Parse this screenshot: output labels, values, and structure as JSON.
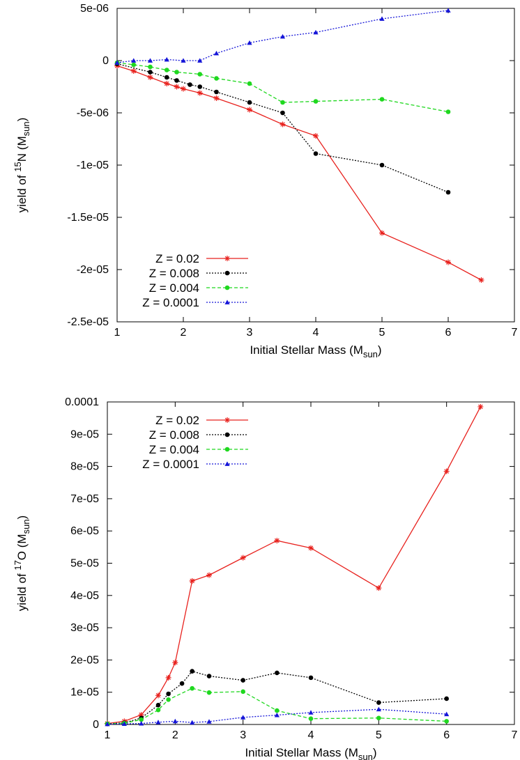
{
  "chart_data": [
    {
      "type": "line",
      "xlabel": "Initial Stellar Mass (M",
      "xlabel_sub": "sun",
      "xlabel_end": ")",
      "ylabel_pre": "yield of ",
      "ylabel_sup": "15",
      "ylabel_mid": "N (M",
      "ylabel_sub": "sun",
      "ylabel_end": ")",
      "xlim": [
        1,
        7
      ],
      "ylim": [
        -2.5e-05,
        5e-06
      ],
      "xticks": [
        "1",
        "2",
        "3",
        "4",
        "5",
        "6",
        "7"
      ],
      "yticks": [
        "5e-06",
        "0",
        "-5e-06",
        "-1e-05",
        "-1.5e-05",
        "-2e-05",
        "-2.5e-05"
      ],
      "ytick_values": [
        5e-06,
        0,
        -5e-06,
        -1e-05,
        -1.5e-05,
        -2e-05,
        -2.5e-05
      ],
      "grid": false,
      "legend_position": "bottom-left",
      "series": [
        {
          "name": "Z = 0.02",
          "color": "#e8211d",
          "marker": "asterisk",
          "dash": "solid",
          "x": [
            1,
            1.25,
            1.5,
            1.75,
            1.9,
            2,
            2.25,
            2.5,
            3,
            3.5,
            4,
            5,
            6,
            6.5
          ],
          "y": [
            -5e-07,
            -1e-06,
            -1.6e-06,
            -2.2e-06,
            -2.5e-06,
            -2.7e-06,
            -3.1e-06,
            -3.6e-06,
            -4.7e-06,
            -6.1e-06,
            -7.2e-06,
            -1.65e-05,
            -1.93e-05,
            -2.1e-05
          ]
        },
        {
          "name": "Z = 0.008",
          "color": "#000000",
          "marker": "circle",
          "dash": "dotted",
          "x": [
            1,
            1.5,
            1.75,
            1.9,
            2.1,
            2.25,
            2.5,
            3,
            3.5,
            4,
            5,
            6
          ],
          "y": [
            -3e-07,
            -1.1e-06,
            -1.6e-06,
            -1.9e-06,
            -2.3e-06,
            -2.5e-06,
            -3e-06,
            -4e-06,
            -5e-06,
            -8.9e-06,
            -1e-05,
            -1.26e-05
          ]
        },
        {
          "name": "Z = 0.004",
          "color": "#1fd81f",
          "marker": "circle",
          "dash": "dashed",
          "x": [
            1,
            1.25,
            1.5,
            1.75,
            1.9,
            2.25,
            2.5,
            3,
            3.5,
            4,
            5,
            6
          ],
          "y": [
            -2e-07,
            -4e-07,
            -6e-07,
            -9e-07,
            -1.1e-06,
            -1.3e-06,
            -1.7e-06,
            -2.2e-06,
            -4e-06,
            -3.9e-06,
            -3.7e-06,
            -4.9e-06
          ]
        },
        {
          "name": "Z = 0.0001",
          "color": "#1515d8",
          "marker": "triangle",
          "dash": "dotted",
          "x": [
            1,
            1.25,
            1.5,
            1.75,
            2,
            2.25,
            2.5,
            3,
            3.5,
            4,
            5,
            6
          ],
          "y": [
            -2e-07,
            0,
            0,
            1e-07,
            0,
            0,
            7e-07,
            1.7e-06,
            2.3e-06,
            2.7e-06,
            4e-06,
            4.8e-06
          ]
        }
      ]
    },
    {
      "type": "line",
      "xlabel": "Initial Stellar Mass (M",
      "xlabel_sub": "sun",
      "xlabel_end": ")",
      "ylabel_pre": "yield of ",
      "ylabel_sup": "17",
      "ylabel_mid": "O (M",
      "ylabel_sub": "sun",
      "ylabel_end": ")",
      "xlim": [
        1,
        7
      ],
      "ylim": [
        0,
        0.0001
      ],
      "xticks": [
        "1",
        "2",
        "3",
        "4",
        "5",
        "6",
        "7"
      ],
      "yticks": [
        "0.0001",
        "9e-05",
        "8e-05",
        "7e-05",
        "6e-05",
        "5e-05",
        "4e-05",
        "3e-05",
        "2e-05",
        "1e-05",
        "0"
      ],
      "ytick_values": [
        0.0001,
        9e-05,
        8e-05,
        7e-05,
        6e-05,
        5e-05,
        4e-05,
        3e-05,
        2e-05,
        1e-05,
        0
      ],
      "grid": false,
      "legend_position": "top-left",
      "series": [
        {
          "name": "Z = 0.02",
          "color": "#e8211d",
          "marker": "asterisk",
          "dash": "solid",
          "x": [
            1,
            1.25,
            1.5,
            1.75,
            1.9,
            2,
            2.25,
            2.5,
            3,
            3.5,
            4,
            5,
            6,
            6.5
          ],
          "y": [
            3e-07,
            1e-06,
            3e-06,
            9e-06,
            1.45e-05,
            1.92e-05,
            4.45e-05,
            4.63e-05,
            5.17e-05,
            5.7e-05,
            5.47e-05,
            4.23e-05,
            7.85e-05,
            9.85e-05
          ]
        },
        {
          "name": "Z = 0.008",
          "color": "#000000",
          "marker": "circle",
          "dash": "dotted",
          "x": [
            1,
            1.25,
            1.5,
            1.75,
            1.9,
            2.1,
            2.25,
            2.5,
            3,
            3.5,
            4,
            5,
            6
          ],
          "y": [
            2e-07,
            5e-07,
            2e-06,
            6e-06,
            9.5e-06,
            1.27e-05,
            1.65e-05,
            1.5e-05,
            1.37e-05,
            1.6e-05,
            1.45e-05,
            6.8e-06,
            8e-06
          ]
        },
        {
          "name": "Z = 0.004",
          "color": "#1fd81f",
          "marker": "circle",
          "dash": "dashed",
          "x": [
            1,
            1.25,
            1.5,
            1.75,
            1.9,
            2.25,
            2.5,
            3,
            3.5,
            4,
            5,
            6
          ],
          "y": [
            2e-07,
            4e-07,
            1.5e-06,
            4.5e-06,
            7.7e-06,
            1.12e-05,
            9.9e-06,
            1.02e-05,
            4.3e-06,
            1.8e-06,
            2e-06,
            1e-06
          ]
        },
        {
          "name": "Z = 0.0001",
          "color": "#1515d8",
          "marker": "triangle",
          "dash": "dotted",
          "x": [
            1,
            1.25,
            1.5,
            1.75,
            2,
            2.25,
            2.5,
            3,
            3.5,
            4,
            5,
            6
          ],
          "y": [
            1e-07,
            2e-07,
            3e-07,
            7e-07,
            1e-06,
            6e-07,
            9e-07,
            2.2e-06,
            2.9e-06,
            3.7e-06,
            4.7e-06,
            3.2e-06
          ]
        }
      ]
    }
  ]
}
